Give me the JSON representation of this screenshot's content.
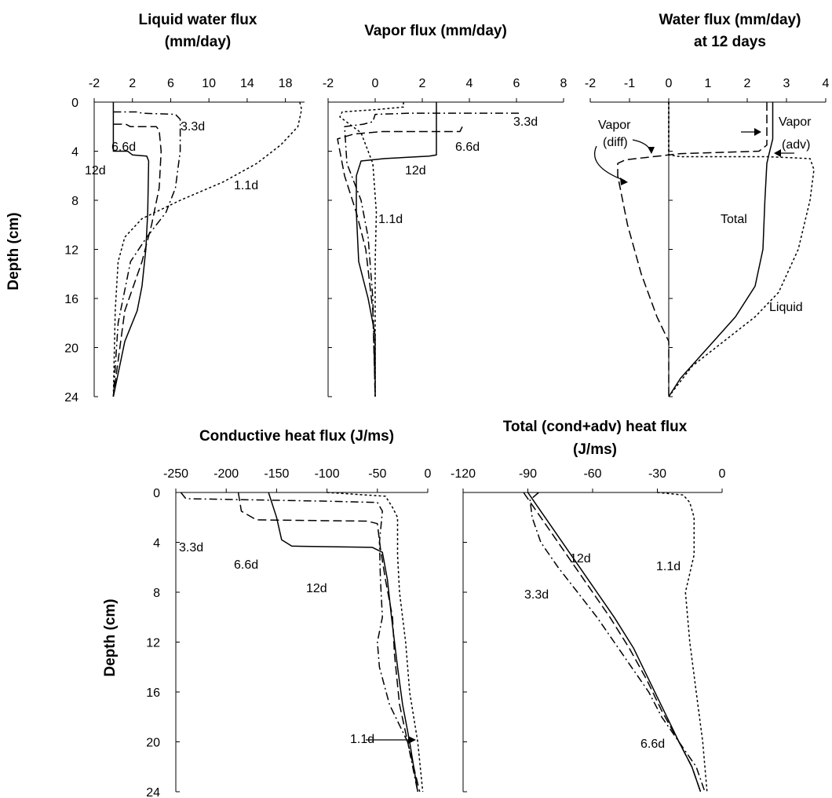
{
  "chart_data": [
    {
      "id": "p1",
      "type": "line",
      "title": [
        "Liquid water flux",
        "(mm/day)"
      ],
      "xlabel": "",
      "ylabel": "Depth (cm)",
      "xlim": [
        -2,
        20
      ],
      "xticks": [
        -2,
        2,
        6,
        10,
        14,
        18
      ],
      "ylim": [
        0,
        24
      ],
      "yticks": [
        0,
        4,
        8,
        12,
        16,
        20,
        24
      ],
      "y_inverted": true,
      "x_axis_position": "top",
      "series": [
        {
          "style": "short-dash",
          "points": [
            [
              19.5,
              0
            ],
            [
              19.7,
              0.6
            ],
            [
              19.3,
              2
            ],
            [
              17.5,
              3.5
            ],
            [
              15,
              5
            ],
            [
              11.5,
              6.5
            ],
            [
              7,
              8
            ],
            [
              3,
              9.5
            ],
            [
              1.2,
              11
            ],
            [
              0.5,
              13
            ],
            [
              0.2,
              17
            ],
            [
              0,
              24
            ]
          ]
        },
        {
          "style": "dash-dot",
          "points": [
            [
              0,
              0.8
            ],
            [
              2.5,
              0.8
            ],
            [
              3,
              0.9
            ],
            [
              6.5,
              1
            ],
            [
              7,
              1.4
            ],
            [
              7,
              4
            ],
            [
              6.5,
              7
            ],
            [
              5.5,
              9
            ],
            [
              3.5,
              11
            ],
            [
              1.8,
              13
            ],
            [
              0.5,
              18
            ],
            [
              0,
              24
            ]
          ]
        },
        {
          "style": "long-dash",
          "points": [
            [
              0,
              1.8
            ],
            [
              1.3,
              1.8
            ],
            [
              1.8,
              2
            ],
            [
              4.5,
              2
            ],
            [
              4.8,
              2.3
            ],
            [
              5,
              4
            ],
            [
              4.8,
              7
            ],
            [
              4,
              10
            ],
            [
              3,
              13
            ],
            [
              1.2,
              17
            ],
            [
              0,
              24
            ]
          ]
        },
        {
          "style": "solid",
          "points": [
            [
              0,
              0
            ],
            [
              0,
              4
            ],
            [
              1.5,
              4
            ],
            [
              2,
              4.3
            ],
            [
              3.5,
              4.4
            ],
            [
              3.7,
              4.8
            ],
            [
              3.6,
              9
            ],
            [
              3.4,
              12
            ],
            [
              3,
              15
            ],
            [
              2.5,
              17
            ],
            [
              1.2,
              19.5
            ],
            [
              0,
              24
            ]
          ]
        }
      ],
      "annotations": [
        "3.3d",
        "6.6d",
        "12d",
        "1.1d"
      ]
    },
    {
      "id": "p2",
      "type": "line",
      "title": [
        "Vapor flux (mm/day)"
      ],
      "xlim": [
        -2,
        8
      ],
      "xticks": [
        -2,
        0,
        2,
        4,
        6,
        8
      ],
      "ylim": [
        0,
        24
      ],
      "yticks": [
        0,
        4,
        8,
        12,
        16,
        20,
        24
      ],
      "y_inverted": true,
      "x_axis_position": "top",
      "series": [
        {
          "style": "dash-dot",
          "points": [
            [
              6.1,
              0.9
            ],
            [
              1.5,
              0.9
            ],
            [
              0,
              1
            ],
            [
              -0.1,
              1.6
            ],
            [
              -0.5,
              1.8
            ],
            [
              -1.3,
              2
            ],
            [
              -1.2,
              5
            ],
            [
              -0.6,
              8
            ],
            [
              -0.3,
              11
            ],
            [
              -0.1,
              16
            ],
            [
              0,
              24
            ]
          ]
        },
        {
          "style": "long-dash",
          "points": [
            [
              3.7,
              2
            ],
            [
              3.6,
              2.4
            ],
            [
              0.3,
              2.4
            ],
            [
              -0.9,
              2.6
            ],
            [
              -1.6,
              3
            ],
            [
              -1.3,
              6
            ],
            [
              -0.8,
              9
            ],
            [
              -0.4,
              12
            ],
            [
              -0.1,
              17
            ],
            [
              0,
              24
            ]
          ]
        },
        {
          "style": "solid",
          "points": [
            [
              2.6,
              0
            ],
            [
              2.6,
              4.3
            ],
            [
              2.3,
              4.4
            ],
            [
              0.4,
              4.6
            ],
            [
              -0.6,
              4.8
            ],
            [
              -0.8,
              6
            ],
            [
              -0.8,
              9
            ],
            [
              -0.7,
              13
            ],
            [
              -0.3,
              16
            ],
            [
              0,
              19
            ],
            [
              0,
              24
            ]
          ]
        },
        {
          "style": "short-dash",
          "points": [
            [
              1.2,
              0
            ],
            [
              1.2,
              0.4
            ],
            [
              0.1,
              0.6
            ],
            [
              -1.4,
              0.8
            ],
            [
              -1.5,
              1.2
            ],
            [
              -0.6,
              2.5
            ],
            [
              -0.1,
              5
            ],
            [
              0.05,
              9
            ],
            [
              0,
              13
            ],
            [
              0,
              24
            ]
          ]
        }
      ],
      "annotations": [
        "3.3d",
        "6.6d",
        "12d",
        "1.1d"
      ]
    },
    {
      "id": "p3",
      "type": "line",
      "title": [
        "Water flux (mm/day)",
        "at 12 days"
      ],
      "xlim": [
        -2,
        4
      ],
      "xticks": [
        -2,
        -1,
        0,
        1,
        2,
        3,
        4
      ],
      "ylim": [
        0,
        24
      ],
      "yticks": [
        0,
        4,
        8,
        12,
        16,
        20,
        24
      ],
      "y_inverted": true,
      "x_axis_position": "top",
      "series": [
        {
          "name": "Liquid",
          "style": "short-dash",
          "points": [
            [
              0,
              0
            ],
            [
              0,
              4.3
            ],
            [
              0.3,
              4.45
            ],
            [
              2.5,
              4.45
            ],
            [
              3.6,
              4.6
            ],
            [
              3.7,
              5.5
            ],
            [
              3.6,
              8
            ],
            [
              3.3,
              12
            ],
            [
              2.8,
              15.5
            ],
            [
              2.2,
              17.5
            ],
            [
              1.4,
              19.5
            ],
            [
              0.6,
              21.5
            ],
            [
              0,
              24
            ]
          ]
        },
        {
          "name": "Total",
          "style": "solid",
          "points": [
            [
              2.65,
              0
            ],
            [
              2.65,
              3
            ],
            [
              2.55,
              4.3
            ],
            [
              2.5,
              5
            ],
            [
              2.45,
              8
            ],
            [
              2.4,
              12
            ],
            [
              2.2,
              15
            ],
            [
              1.7,
              17.5
            ],
            [
              1.0,
              20
            ],
            [
              0.3,
              22.5
            ],
            [
              0,
              24
            ]
          ]
        },
        {
          "name": "Vapor (diff)",
          "style": "long-dash",
          "points": [
            [
              2.5,
              0
            ],
            [
              2.5,
              3.5
            ],
            [
              2.3,
              4
            ],
            [
              0.3,
              4.2
            ],
            [
              -1.1,
              4.7
            ],
            [
              -1.3,
              5
            ],
            [
              -1.3,
              6
            ],
            [
              -1.05,
              10
            ],
            [
              -0.7,
              14
            ],
            [
              -0.3,
              17.5
            ],
            [
              0,
              19.5
            ],
            [
              0,
              24
            ]
          ]
        },
        {
          "name": "Vapor (adv)",
          "style": "short-dash",
          "points": [
            [
              0,
              0
            ],
            [
              0,
              4.3
            ]
          ]
        }
      ],
      "annotations": [
        "Vapor",
        "(diff)",
        "Vapor",
        "(adv)",
        "Total",
        "Liquid"
      ]
    },
    {
      "id": "p4",
      "type": "line",
      "title": [
        "Conductive heat flux (J/ms)"
      ],
      "xlim": [
        -250,
        0
      ],
      "xticks": [
        -250,
        -200,
        -150,
        -100,
        -50,
        0
      ],
      "ylim": [
        0,
        24
      ],
      "yticks": [
        0,
        4,
        8,
        12,
        16,
        20,
        24
      ],
      "y_inverted": true,
      "ylabel": "Depth (cm)",
      "x_axis_position": "top",
      "series": [
        {
          "style": "dash-dot",
          "points": [
            [
              -245,
              0
            ],
            [
              -240,
              0.5
            ],
            [
              -100,
              0.7
            ],
            [
              -50,
              0.8
            ],
            [
              -45,
              1.5
            ],
            [
              -48,
              4
            ],
            [
              -47,
              7
            ],
            [
              -45,
              10
            ],
            [
              -50,
              12
            ],
            [
              -48,
              14
            ],
            [
              -38,
              17
            ],
            [
              -20,
              20
            ],
            [
              -10,
              24
            ]
          ]
        },
        {
          "style": "long-dash",
          "points": [
            [
              -188,
              0
            ],
            [
              -185,
              1.5
            ],
            [
              -170,
              2.2
            ],
            [
              -60,
              2.3
            ],
            [
              -50,
              2.5
            ],
            [
              -47,
              4.5
            ],
            [
              -42,
              7
            ],
            [
              -35,
              10
            ],
            [
              -33,
              13
            ],
            [
              -28,
              17
            ],
            [
              -20,
              20
            ],
            [
              -8,
              24
            ]
          ]
        },
        {
          "style": "solid",
          "points": [
            [
              -158,
              0
            ],
            [
              -150,
              2
            ],
            [
              -145,
              3.8
            ],
            [
              -135,
              4.3
            ],
            [
              -55,
              4.4
            ],
            [
              -45,
              4.8
            ],
            [
              -40,
              7
            ],
            [
              -36,
              10
            ],
            [
              -30,
              14
            ],
            [
              -25,
              17
            ],
            [
              -18,
              20
            ],
            [
              -10,
              24
            ]
          ]
        },
        {
          "style": "short-dash",
          "points": [
            [
              -100,
              0
            ],
            [
              -42,
              0.3
            ],
            [
              -35,
              1.2
            ],
            [
              -30,
              2
            ],
            [
              -30,
              5
            ],
            [
              -28,
              8
            ],
            [
              -22,
              12
            ],
            [
              -18,
              16
            ],
            [
              -10,
              20
            ],
            [
              -5,
              24
            ]
          ]
        }
      ],
      "annotations": [
        "3.3d",
        "6.6d",
        "12d",
        "1.1d"
      ]
    },
    {
      "id": "p5",
      "type": "line",
      "title": [
        "Total (cond+adv) heat flux",
        "(J/ms)"
      ],
      "xlim": [
        -120,
        0
      ],
      "xticks": [
        -120,
        -90,
        -60,
        -30,
        0
      ],
      "ylim": [
        0,
        24
      ],
      "yticks": [
        0,
        4,
        8,
        12,
        16,
        20,
        24
      ],
      "y_inverted": true,
      "x_axis_position": "top",
      "series": [
        {
          "style": "short-dash",
          "points": [
            [
              -30,
              0
            ],
            [
              -18,
              0.2
            ],
            [
              -15,
              0.8
            ],
            [
              -13,
              2
            ],
            [
              -13,
              5
            ],
            [
              -17,
              8
            ],
            [
              -15,
              12
            ],
            [
              -12,
              16
            ],
            [
              -9,
              20
            ],
            [
              -7,
              24
            ]
          ]
        },
        {
          "style": "dash-dot",
          "points": [
            [
              -85,
              0
            ],
            [
              -89,
              0.6
            ],
            [
              -88,
              2
            ],
            [
              -84,
              4
            ],
            [
              -76,
              6
            ],
            [
              -67,
              8
            ],
            [
              -58,
              10
            ],
            [
              -50,
              12
            ],
            [
              -42,
              14
            ],
            [
              -34,
              16
            ],
            [
              -28,
              18
            ],
            [
              -20,
              20
            ],
            [
              -12,
              22
            ],
            [
              -8,
              24
            ]
          ]
        },
        {
          "style": "long-dash",
          "points": [
            [
              -92,
              0
            ],
            [
              -88,
              1
            ],
            [
              -82,
              2.5
            ],
            [
              -72,
              5
            ],
            [
              -62,
              7.5
            ],
            [
              -52,
              10
            ],
            [
              -43,
              12.5
            ],
            [
              -35,
              15
            ],
            [
              -28,
              17.5
            ],
            [
              -20,
              20
            ],
            [
              -14,
              22
            ],
            [
              -10,
              24
            ]
          ]
        },
        {
          "style": "solid",
          "points": [
            [
              -90,
              0
            ],
            [
              -86,
              1
            ],
            [
              -80,
              2.5
            ],
            [
              -70,
              5
            ],
            [
              -60,
              7.5
            ],
            [
              -50,
              10
            ],
            [
              -41,
              12.5
            ],
            [
              -34,
              15
            ],
            [
              -27,
              17.5
            ],
            [
              -20,
              20
            ],
            [
              -14,
              22
            ],
            [
              -10,
              24
            ]
          ]
        }
      ],
      "annotations": [
        "12d",
        "1.1d",
        "3.3d",
        "6.6d"
      ]
    }
  ]
}
